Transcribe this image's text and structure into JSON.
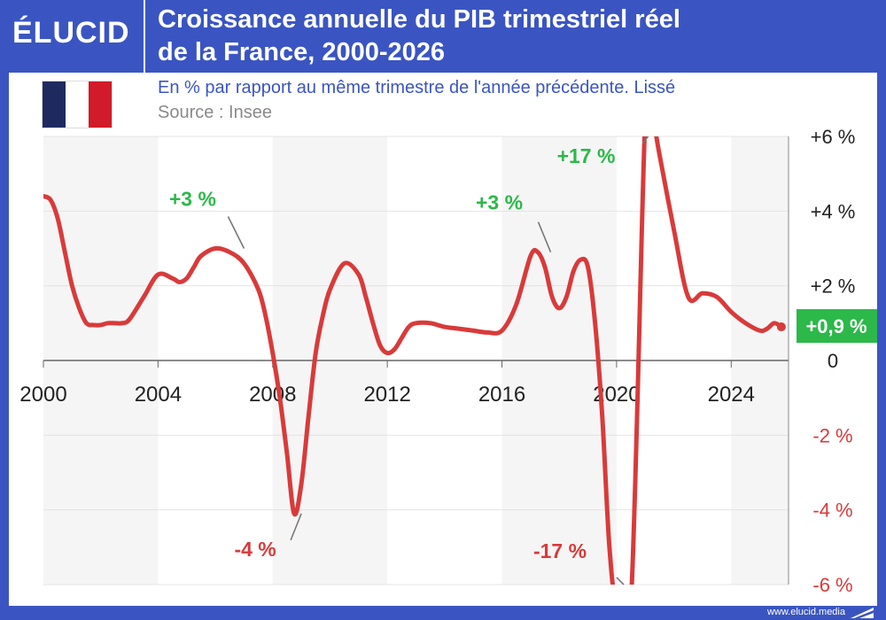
{
  "header": {
    "logo": "ÉLUCID",
    "title_line1": "Croissance annuelle du PIB trimestriel réel",
    "title_line2": "de la France, 2000-2026"
  },
  "panel": {
    "subtitle": "En % par rapport au même trimestre de l'année précédente. Lissé",
    "source": "Source : Insee"
  },
  "footer": {
    "url": "www.elucid.media"
  },
  "chart_data": {
    "type": "line",
    "title": "Croissance annuelle du PIB trimestriel réel de la France, 2000-2026",
    "subtitle": "En % par rapport au même trimestre de l'année précédente. Lissé",
    "xlim": [
      2000,
      2026
    ],
    "ylim": [
      -6,
      6
    ],
    "x_ticks": [
      2000,
      2004,
      2008,
      2012,
      2016,
      2020,
      2024
    ],
    "x_tick_labels": [
      "2000",
      "2004",
      "2008",
      "2012",
      "2016",
      "2020",
      "2024"
    ],
    "y_ticks": [
      6,
      4,
      2,
      0,
      -2,
      -4,
      -6
    ],
    "y_tick_labels": [
      "+6 %",
      "+4 %",
      "+2 %",
      "0",
      "-2 %",
      "-4 %",
      "-6 %"
    ],
    "grid": true,
    "line_color": "#d93a3a",
    "positive_color": "#2db84a",
    "negative_color": "#d93a3a",
    "series": [
      {
        "x": [
          2000,
          2000.25,
          2000.5,
          2000.75,
          2001,
          2001.25,
          2001.5,
          2001.75,
          2002,
          2002.25,
          2002.5,
          2002.75,
          2003,
          2003.5,
          2004,
          2004.5,
          2004.75,
          2005,
          2005.25,
          2005.5,
          2006,
          2006.5,
          2007,
          2007.5,
          2007.75,
          2008,
          2008.25,
          2008.5,
          2008.75,
          2009,
          2009.25,
          2009.5,
          2009.75,
          2010,
          2010.5,
          2011,
          2011.25,
          2011.5,
          2011.75,
          2012,
          2012.25,
          2012.5,
          2012.75,
          2013,
          2013.5,
          2014,
          2014.5,
          2015,
          2015.5,
          2016,
          2016.5,
          2017,
          2017.25,
          2017.5,
          2017.75,
          2018,
          2018.25,
          2018.5,
          2018.75,
          2019,
          2019.25,
          2019.5,
          2019.75,
          2020,
          2020.5,
          2021,
          2021.25,
          2021.5,
          2022,
          2022.5,
          2023,
          2023.5,
          2024,
          2024.5,
          2025,
          2025.25,
          2025.5,
          2025.75
        ],
        "y": [
          4.4,
          4.3,
          3.8,
          2.9,
          2.0,
          1.4,
          1.0,
          0.95,
          0.95,
          1.0,
          1.0,
          1.0,
          1.1,
          1.7,
          2.3,
          2.2,
          2.1,
          2.2,
          2.5,
          2.8,
          3.0,
          2.9,
          2.6,
          1.9,
          1.2,
          0.2,
          -1.0,
          -2.5,
          -4.1,
          -3.3,
          -1.5,
          0.2,
          1.2,
          1.9,
          2.6,
          2.3,
          1.7,
          1.0,
          0.4,
          0.2,
          0.3,
          0.6,
          0.9,
          1.0,
          1.0,
          0.9,
          0.85,
          0.8,
          0.75,
          0.8,
          1.5,
          2.8,
          2.9,
          2.5,
          1.7,
          1.4,
          1.7,
          2.4,
          2.7,
          2.5,
          1.0,
          -1.5,
          -5.0,
          -6.5,
          -6.5,
          6.5,
          6.5,
          5.5,
          3.5,
          1.7,
          1.8,
          1.7,
          1.3,
          1.0,
          0.8,
          0.85,
          1.0,
          0.9
        ]
      }
    ],
    "annotations": [
      {
        "text": "+3 %",
        "x": 2007,
        "y": 3.0,
        "sign": "positive"
      },
      {
        "text": "-4 %",
        "x": 2009,
        "y": -4.1,
        "sign": "negative"
      },
      {
        "text": "+3 %",
        "x": 2017.7,
        "y": 2.9,
        "sign": "positive"
      },
      {
        "text": "-17 %",
        "x": 2020.25,
        "y": -6.0,
        "sign": "negative"
      },
      {
        "text": "+17 %",
        "x": 2021.1,
        "y": 6.0,
        "sign": "positive"
      }
    ],
    "last_value": {
      "text": "+0,9 %",
      "x": 2025.75,
      "y": 0.9
    }
  }
}
